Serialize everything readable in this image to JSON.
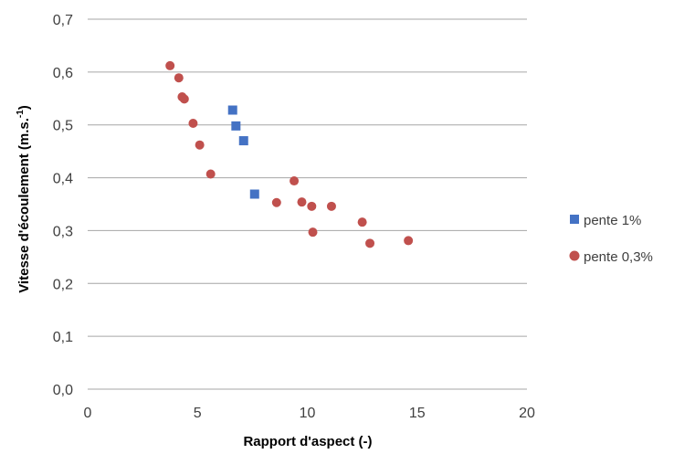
{
  "chart_data": {
    "type": "scatter",
    "title": "",
    "xlabel": "Rapport d'aspect (-)",
    "ylabel_main": "Vitesse d'écoulement (m.s.",
    "ylabel_sup": "-1",
    "ylabel_end": ")",
    "xlim": [
      0,
      20
    ],
    "ylim": [
      0,
      0.7
    ],
    "x_ticks": [
      0,
      5,
      10,
      15,
      20
    ],
    "x_tick_labels": [
      "0",
      "5",
      "10",
      "15",
      "20"
    ],
    "y_ticks": [
      0,
      0.1,
      0.2,
      0.3,
      0.4,
      0.5,
      0.6,
      0.7
    ],
    "y_tick_labels": [
      "0,0",
      "0,1",
      "0,2",
      "0,3",
      "0,4",
      "0,5",
      "0,6",
      "0,7"
    ],
    "grid": "horizontal",
    "legend_position": "right",
    "series": [
      {
        "name": "pente 1%",
        "marker": "square",
        "color": "#4472C4",
        "points": [
          {
            "x": 6.6,
            "y": 0.528
          },
          {
            "x": 6.75,
            "y": 0.498
          },
          {
            "x": 7.1,
            "y": 0.47
          },
          {
            "x": 7.6,
            "y": 0.369
          }
        ]
      },
      {
        "name": "pente 0,3%",
        "marker": "circle",
        "color": "#C0504D",
        "points": [
          {
            "x": 3.75,
            "y": 0.612
          },
          {
            "x": 4.15,
            "y": 0.589
          },
          {
            "x": 4.3,
            "y": 0.553
          },
          {
            "x": 4.4,
            "y": 0.549
          },
          {
            "x": 4.8,
            "y": 0.503
          },
          {
            "x": 5.1,
            "y": 0.462
          },
          {
            "x": 5.6,
            "y": 0.407
          },
          {
            "x": 8.6,
            "y": 0.353
          },
          {
            "x": 9.4,
            "y": 0.394
          },
          {
            "x": 9.75,
            "y": 0.354
          },
          {
            "x": 10.2,
            "y": 0.346
          },
          {
            "x": 10.25,
            "y": 0.297
          },
          {
            "x": 11.1,
            "y": 0.346
          },
          {
            "x": 12.5,
            "y": 0.316
          },
          {
            "x": 12.85,
            "y": 0.276
          },
          {
            "x": 14.6,
            "y": 0.281
          }
        ]
      }
    ]
  }
}
